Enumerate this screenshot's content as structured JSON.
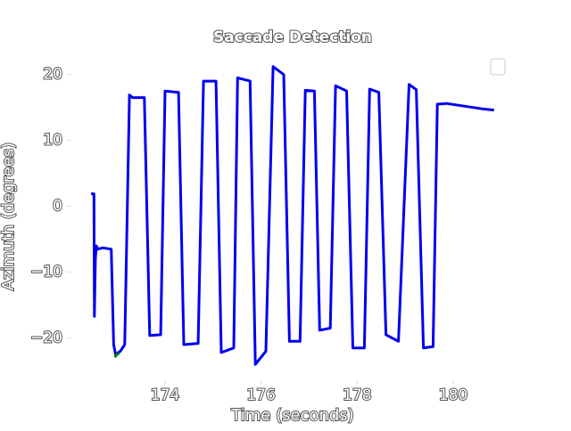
{
  "chart_data": {
    "type": "line",
    "title": "Saccade Detection",
    "x_label": "Time (seconds)",
    "y_label": "Azimuth (degrees)",
    "xlim": [
      172.05,
      181.3
    ],
    "ylim": [
      -26.4,
      23.2
    ],
    "xticks": [
      174,
      176,
      178,
      180
    ],
    "yticks": [
      {
        "value": -20,
        "label": "−20"
      },
      {
        "value": -10,
        "label": "−10"
      },
      0,
      10,
      20
    ],
    "series": [
      {
        "color": "#0000ee",
        "x": [
          172.46,
          172.52,
          172.53,
          172.55,
          172.57,
          172.6,
          172.7,
          172.88,
          172.93,
          172.97,
          173.07,
          173.16,
          173.26,
          173.32,
          173.57,
          173.68,
          173.91,
          174.0,
          174.28,
          174.39,
          174.69,
          174.8,
          175.06,
          175.17,
          175.43,
          175.51,
          175.77,
          175.88,
          176.1,
          176.25,
          176.47,
          176.59,
          176.81,
          176.92,
          177.11,
          177.22,
          177.44,
          177.55,
          177.78,
          177.91,
          178.15,
          178.26,
          178.45,
          178.6,
          178.86,
          179.08,
          179.23,
          179.38,
          179.58,
          179.67,
          179.86,
          180.23,
          180.6,
          180.85
        ],
        "values": [
          1.9,
          1.9,
          -16.7,
          -8,
          -6,
          -6.5,
          -6.3,
          -6.5,
          -21,
          -22.5,
          -22,
          -21,
          16.9,
          16.5,
          16.5,
          -19.6,
          -19.5,
          17.5,
          17.3,
          -21,
          -20.8,
          19,
          19,
          -22.2,
          -21.5,
          19.5,
          19,
          -24,
          -22,
          21.2,
          20,
          -20.5,
          -20.5,
          17.6,
          17.5,
          -18.8,
          -18.5,
          18.3,
          17.5,
          -21.5,
          -21.5,
          17.8,
          17.3,
          -19.5,
          -20.5,
          18.5,
          17.7,
          -21.5,
          -21.3,
          15.5,
          15.6,
          15.2,
          14.8,
          14.6
        ]
      },
      {
        "color": "#008000",
        "x": [
          172.95,
          173.0,
          173.05
        ],
        "values": [
          -22.9,
          -22.5,
          -22.3
        ]
      }
    ]
  }
}
